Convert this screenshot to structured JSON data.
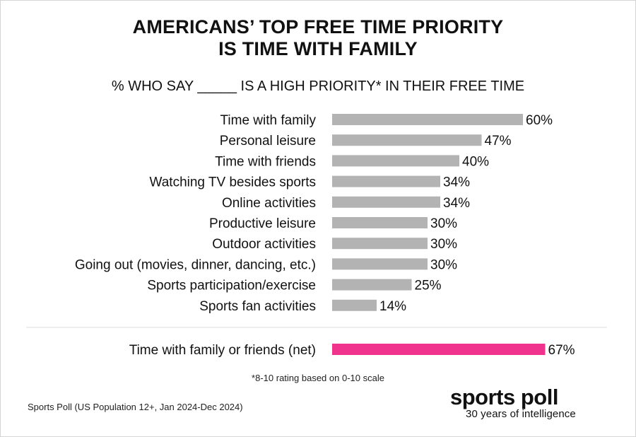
{
  "chart_data": {
    "type": "bar",
    "orientation": "horizontal",
    "title_line1": "AMERICANS’ TOP FREE TIME PRIORITY",
    "title_line2": "IS TIME WITH FAMILY",
    "subtitle": "% WHO SAY _____ IS A HIGH PRIORITY* IN THEIR FREE TIME",
    "value_suffix": "%",
    "categories": [
      "Time with family",
      "Personal leisure",
      "Time with friends",
      "Watching TV besides sports",
      "Online activities",
      "Productive leisure",
      "Outdoor activities",
      "Going out (movies, dinner, dancing, etc.)",
      "Sports participation/exercise",
      "Sports fan activities"
    ],
    "values": [
      60,
      47,
      40,
      34,
      34,
      30,
      30,
      30,
      25,
      14
    ],
    "bar_color": "#b3b3b3",
    "net": {
      "category": "Time with family or friends (net)",
      "value": 67,
      "color": "#f0338d"
    },
    "xlim": [
      0,
      100
    ],
    "grid": false,
    "legend": "none"
  },
  "footnote": "*8-10 rating based on 0-10 scale",
  "source": "Sports Poll (US Population 12+, Jan 2024-Dec 2024)",
  "logo": {
    "name": "sports poll",
    "tagline": "30 years of intelligence"
  }
}
